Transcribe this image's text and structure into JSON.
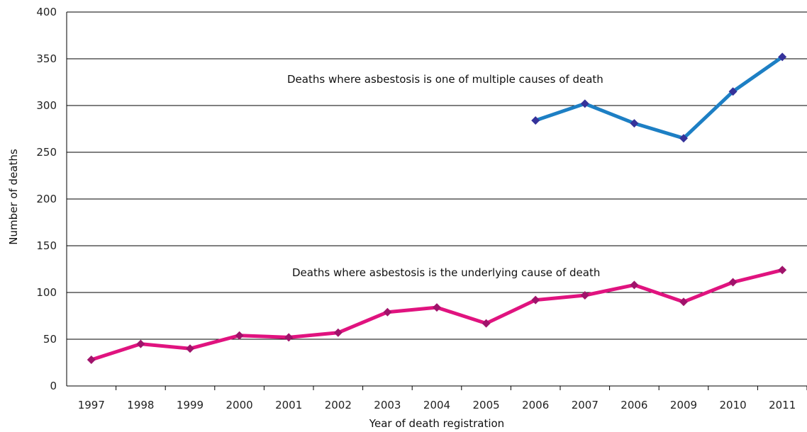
{
  "chart_data": {
    "type": "line",
    "xlabel": "Year of death registration",
    "ylabel": "Number of deaths",
    "ylim": [
      0,
      400
    ],
    "yticks": [
      0,
      50,
      100,
      150,
      200,
      250,
      300,
      350,
      400
    ],
    "grid": true,
    "categories": [
      "1997",
      "1998",
      "1999",
      "2000",
      "2001",
      "2002",
      "2003",
      "2004",
      "2005",
      "2006",
      "2007",
      "2006",
      "2009",
      "2010",
      "2011"
    ],
    "series": [
      {
        "values": [
          28,
          45,
          40,
          54,
          52,
          57,
          79,
          84,
          67,
          92,
          97,
          108,
          90,
          111,
          124
        ],
        "color": "#e0137f",
        "marker_color": "#a0136b",
        "annotation": "Deaths where asbestosis is the underlying cause of death"
      },
      {
        "values": [
          null,
          null,
          null,
          null,
          null,
          null,
          null,
          null,
          null,
          284,
          302,
          281,
          265,
          315,
          352
        ],
        "color": "#1d7fc4",
        "marker_color": "#35329a",
        "annotation": "Deaths where asbestosis is one of multiple causes of death"
      }
    ]
  }
}
